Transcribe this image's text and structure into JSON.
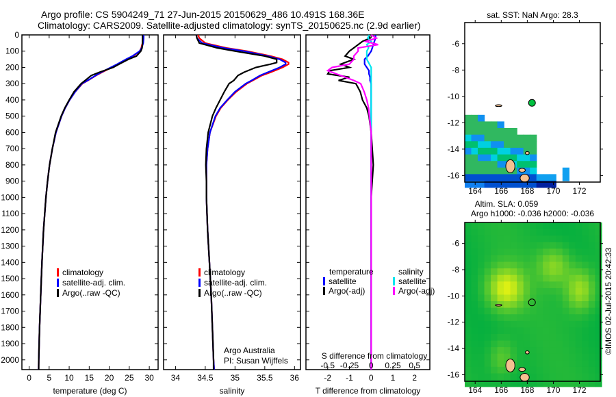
{
  "header": {
    "line1": "Argo profile: CS 5904249_71 27-Jun-2015 20150629_486 10.491S 168.36E",
    "line2": "Climatology: CARS2009. Satellite-adjusted climatology: synTS_20150625.nc (2.9d earlier)"
  },
  "credit": "©IMOS 02-Jul-2015 20:42:33",
  "colors": {
    "climatology": "#ff0000",
    "satellite": "#0000ff",
    "argo": "#000000",
    "sal_satellite": "#00e5ee",
    "sal_argo": "#ff00ff",
    "land": "#f5c090"
  },
  "chart_data": [
    {
      "type": "line",
      "id": "temperature",
      "xlabel": "temperature (deg C)",
      "ylabel": "",
      "xlim": [
        -1.8,
        32.2
      ],
      "ylim": [
        0,
        2060
      ],
      "xticks": [
        "0",
        "5",
        "10",
        "15",
        "20",
        "25",
        "30"
      ],
      "yticks": [
        "0",
        "100",
        "200",
        "300",
        "400",
        "500",
        "600",
        "700",
        "800",
        "900",
        "1000",
        "1100",
        "1200",
        "1300",
        "1400",
        "1500",
        "1600",
        "1700",
        "1800",
        "1900",
        "2000"
      ],
      "depth": [
        0,
        20,
        50,
        80,
        100,
        130,
        150,
        180,
        200,
        230,
        250,
        280,
        300,
        350,
        400,
        450,
        500,
        600,
        700,
        800,
        900,
        1000,
        1200,
        1400,
        1600,
        1800,
        2000,
        2060
      ],
      "series": [
        {
          "name": "climatology",
          "color": "#ff0000",
          "values": [
            28.4,
            28.4,
            28.3,
            28.0,
            27.6,
            26.0,
            24.5,
            22.3,
            20.6,
            18.2,
            16.7,
            14.7,
            13.3,
            11.5,
            10.1,
            9.0,
            8.1,
            6.7,
            5.8,
            5.1,
            4.6,
            4.2,
            3.6,
            3.2,
            2.9,
            2.6,
            2.4,
            2.35
          ]
        },
        {
          "name": "satellite-adj. clim.",
          "color": "#0000ff",
          "values": [
            28.6,
            28.6,
            28.5,
            28.1,
            27.6,
            25.8,
            24.2,
            22.0,
            20.4,
            18.0,
            16.6,
            14.6,
            13.2,
            11.5,
            10.1,
            9.0,
            8.1,
            6.7,
            5.8,
            5.1,
            4.6,
            4.2,
            3.6,
            3.2,
            2.9,
            2.6,
            2.4,
            2.35
          ]
        },
        {
          "name": "Argo(..raw -QC)",
          "color": "#000000",
          "values": [
            28.3,
            28.3,
            28.3,
            28.2,
            27.9,
            26.8,
            24.8,
            22.5,
            21.0,
            17.5,
            15.5,
            14.0,
            13.0,
            11.2,
            10.0,
            8.9,
            8.0,
            6.6,
            5.8,
            5.1,
            4.6,
            4.2,
            3.6,
            3.2,
            2.9,
            2.6,
            2.4,
            2.4
          ]
        }
      ],
      "legend": [
        "climatology",
        "satellite-adj. clim.",
        "Argo(..raw -QC)"
      ]
    },
    {
      "type": "line",
      "id": "salinity",
      "xlabel": "salinity",
      "xlim": [
        33.8,
        36.1
      ],
      "ylim": [
        0,
        2060
      ],
      "xticks": [
        "34",
        "34.5",
        "35",
        "35.5",
        "36"
      ],
      "depth": [
        0,
        20,
        50,
        80,
        100,
        130,
        150,
        170,
        180,
        200,
        230,
        250,
        280,
        300,
        350,
        400,
        450,
        500,
        600,
        700,
        800,
        900,
        1000,
        1200,
        1400,
        1600,
        1800,
        2000,
        2060
      ],
      "series": [
        {
          "name": "climatology",
          "color": "#ff0000",
          "values": [
            34.38,
            34.4,
            34.5,
            34.85,
            35.2,
            35.6,
            35.8,
            35.9,
            35.9,
            35.8,
            35.6,
            35.45,
            35.3,
            35.2,
            35.02,
            34.88,
            34.76,
            34.68,
            34.58,
            34.54,
            34.52,
            34.52,
            34.52,
            34.54,
            34.57,
            34.6,
            34.62,
            34.64,
            34.65
          ]
        },
        {
          "name": "satellite-adj. clim.",
          "color": "#0000ff",
          "values": [
            34.35,
            34.36,
            34.45,
            34.8,
            35.15,
            35.55,
            35.75,
            35.85,
            35.85,
            35.75,
            35.55,
            35.42,
            35.28,
            35.18,
            35.0,
            34.87,
            34.75,
            34.67,
            34.58,
            34.54,
            34.52,
            34.52,
            34.52,
            34.54,
            34.57,
            34.6,
            34.62,
            34.64,
            34.65
          ]
        },
        {
          "name": "Argo(..raw -QC)",
          "color": "#000000",
          "values": [
            34.35,
            34.36,
            34.4,
            34.7,
            35.0,
            35.5,
            35.7,
            35.7,
            35.6,
            35.35,
            35.15,
            35.05,
            34.98,
            34.9,
            34.82,
            34.75,
            34.68,
            34.62,
            34.55,
            34.52,
            34.51,
            34.52,
            34.52,
            34.54,
            34.57,
            34.6,
            34.62,
            34.64,
            34.64
          ]
        }
      ],
      "legend": [
        "climatology",
        "satellite-adj. clim.",
        "Argo(..raw -QC)"
      ],
      "annotation": [
        "Argo Australia",
        "PI: Susan Wijffels"
      ]
    },
    {
      "type": "line",
      "id": "difference",
      "xlabel": "T difference from climatology",
      "x2label": "S difference from climatology",
      "xlim": [
        -3.0,
        2.7
      ],
      "ylim": [
        0,
        2060
      ],
      "xticks": [
        "-2",
        "-1",
        "0",
        "1",
        "2"
      ],
      "x2ticks": [
        "-0.5",
        "-0.25",
        "0",
        "0.25",
        "0.5"
      ],
      "depth": [
        0,
        20,
        40,
        60,
        80,
        100,
        130,
        150,
        180,
        200,
        220,
        240,
        260,
        280,
        300,
        350,
        400,
        450,
        500,
        600,
        700,
        800,
        1000,
        1200,
        1500,
        1800,
        2000,
        2060
      ],
      "series": [
        {
          "name": "temperature satellite",
          "color": "#0000ff",
          "axis": "T",
          "values": [
            0.2,
            0.2,
            0.15,
            0.1,
            0.05,
            0.0,
            -0.15,
            -0.3,
            -0.3,
            -0.2,
            -0.1,
            -0.1,
            -0.05,
            -0.05,
            0.0,
            0.0,
            0.0,
            0.0,
            0,
            0,
            0,
            0,
            0,
            0,
            0,
            0,
            0,
            0
          ]
        },
        {
          "name": "temperature Argo(-adj)",
          "color": "#000000",
          "axis": "T",
          "values": [
            -0.1,
            -0.05,
            -0.4,
            -0.6,
            -0.8,
            -1.0,
            -1.2,
            -0.8,
            -1.4,
            -1.0,
            -1.9,
            -2.0,
            -1.0,
            -1.5,
            -0.7,
            -0.5,
            -0.4,
            -0.2,
            -0.1,
            0.0,
            0.05,
            0.1,
            0.0,
            0.0,
            0.0,
            0.0,
            0.0,
            0.0
          ]
        },
        {
          "name": "salinity satellite",
          "color": "#00e5ee",
          "axis": "S",
          "values": [
            -0.02,
            -0.04,
            0.0,
            -0.05,
            -0.03,
            -0.05,
            -0.05,
            -0.05,
            -0.02,
            0.0,
            0.0,
            0.0,
            0.0,
            0.0,
            0.0,
            0.0,
            0.0,
            0.0,
            0,
            0,
            0,
            0,
            0,
            0,
            0,
            0,
            0,
            0
          ]
        },
        {
          "name": "salinity Argo(-adj)",
          "color": "#ff00ff",
          "axis": "S",
          "values": [
            0.0,
            0.06,
            -0.06,
            0.08,
            -0.15,
            -0.15,
            -0.2,
            -0.2,
            -0.25,
            -0.45,
            -0.5,
            -0.4,
            -0.3,
            -0.2,
            -0.12,
            -0.08,
            -0.05,
            -0.03,
            -0.02,
            0,
            0,
            0,
            0,
            0,
            0,
            0,
            0,
            0
          ]
        }
      ],
      "legend": {
        "col1_title": "temperature",
        "col1": [
          "satellite",
          "Argo(-adj)"
        ],
        "col2_title": "salinity",
        "col2": [
          "satellite",
          "Argo(-adj)"
        ]
      }
    },
    {
      "type": "heatmap",
      "id": "sst-map",
      "title": "sat. SST: NaN Argo: 28.3",
      "xlim": [
        163.2,
        173.6
      ],
      "ylim": [
        -16.5,
        -4.4
      ],
      "xticks": [
        "164",
        "166",
        "168",
        "170",
        "172"
      ],
      "yticks": [
        "-6",
        "-8",
        "-10",
        "-12",
        "-14",
        "-16"
      ],
      "argo_position": {
        "lon": 168.36,
        "lat": -10.491
      }
    },
    {
      "type": "heatmap",
      "id": "sla-map",
      "title": "Altim. SLA: 0.059",
      "subtitle": "Argo h1000: -0.036 h2000: -0.036",
      "xlim": [
        163.2,
        173.6
      ],
      "ylim": [
        -16.5,
        -4.4
      ],
      "xticks": [
        "164",
        "166",
        "168",
        "170",
        "172"
      ],
      "yticks": [
        "-6",
        "-8",
        "-10",
        "-12",
        "-14",
        "-16"
      ],
      "argo_position": {
        "lon": 168.36,
        "lat": -10.491
      }
    }
  ]
}
